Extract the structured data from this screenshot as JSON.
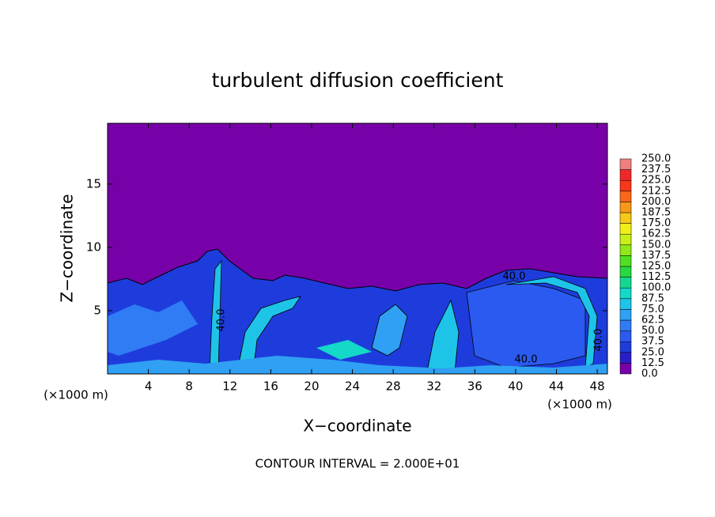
{
  "chart_data": {
    "type": "contour",
    "title": "turbulent diffusion coefficient",
    "xlabel": "X−coordinate",
    "ylabel": "Z−coordinate",
    "xunit": "(×1000 m)",
    "yunit": "(×1000 m)",
    "note": "CONTOUR INTERVAL = 2.000E+01",
    "xlim": [
      0,
      49
    ],
    "ylim": [
      0,
      19.8
    ],
    "xticks": [
      4,
      8,
      12,
      16,
      20,
      24,
      28,
      32,
      36,
      40,
      44,
      48
    ],
    "yticks": [
      5,
      10,
      15
    ],
    "contour_labels": [
      "40.0",
      "40.0",
      "40.0",
      "40.0"
    ],
    "levels": [
      {
        "value": 0,
        "label": "0.0"
      },
      12.5,
      {
        "value": 25,
        "label": "25.0"
      },
      37.5,
      {
        "value": 50,
        "label": "50.0"
      },
      62.5,
      {
        "value": 75,
        "label": "75.0"
      },
      87.5,
      {
        "value": 100,
        "label": "100.0"
      },
      112.5,
      {
        "value": 125,
        "label": "125.0"
      },
      137.5,
      {
        "value": 150,
        "label": "150.0"
      },
      162.5,
      {
        "value": 175,
        "label": "175.0"
      },
      187.5,
      {
        "value": 200,
        "label": "200.0"
      },
      212.5,
      {
        "value": 225,
        "label": "225.0"
      },
      237.5,
      {
        "value": 250,
        "label": "250.0"
      }
    ],
    "colors": [
      "#7800a8",
      "#2a1ec8",
      "#1e3cdc",
      "#2a5af0",
      "#2f7cf4",
      "#2fa0f4",
      "#1ec4e8",
      "#14d8c8",
      "#14d890",
      "#28d840",
      "#50e020",
      "#90e818",
      "#c8f018",
      "#f0f018",
      "#f8c818",
      "#f89818",
      "#f86818",
      "#f83818",
      "#f02828",
      "#f08080"
    ]
  }
}
